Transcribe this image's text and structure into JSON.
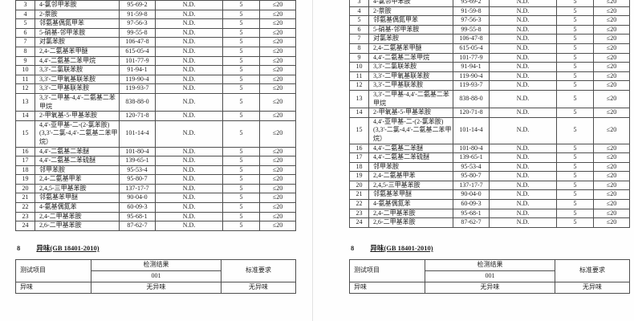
{
  "report": {
    "main_table": {
      "rows": [
        {
          "no": "3",
          "name": "4-氯邻甲苯胺",
          "cas": "95-69-2",
          "result": "N.D.",
          "limit": "5",
          "requirement": "≤20"
        },
        {
          "no": "4",
          "name": "2-萘胺",
          "cas": "91-59-8",
          "result": "N.D.",
          "limit": "5",
          "requirement": "≤20"
        },
        {
          "no": "5",
          "name": "邻氨基偶氮甲苯",
          "cas": "97-56-3",
          "result": "N.D.",
          "limit": "5",
          "requirement": "≤20"
        },
        {
          "no": "6",
          "name": "5-硝基-邻甲苯胺",
          "cas": "99-55-8",
          "result": "N.D.",
          "limit": "5",
          "requirement": "≤20"
        },
        {
          "no": "7",
          "name": "对氯苯胺",
          "cas": "106-47-8",
          "result": "N.D.",
          "limit": "5",
          "requirement": "≤20"
        },
        {
          "no": "8",
          "name": "2,4-二氨基苯甲醚",
          "cas": "615-05-4",
          "result": "N.D.",
          "limit": "5",
          "requirement": "≤20"
        },
        {
          "no": "9",
          "name": "4,4'-二氨基二苯甲烷",
          "cas": "101-77-9",
          "result": "N.D.",
          "limit": "5",
          "requirement": "≤20"
        },
        {
          "no": "10",
          "name": "3,3'-二氯联苯胺",
          "cas": "91-94-1",
          "result": "N.D.",
          "limit": "5",
          "requirement": "≤20"
        },
        {
          "no": "11",
          "name": "3,3'-二甲氧基联苯胺",
          "cas": "119-90-4",
          "result": "N.D.",
          "limit": "5",
          "requirement": "≤20"
        },
        {
          "no": "12",
          "name": "3,3'-二甲基联苯胺",
          "cas": "119-93-7",
          "result": "N.D.",
          "limit": "5",
          "requirement": "≤20"
        },
        {
          "no": "13",
          "name": "3,3'-二甲基-4,4'-二氨基二苯甲烷",
          "cas": "838-88-0",
          "result": "N.D.",
          "limit": "5",
          "requirement": "≤20"
        },
        {
          "no": "14",
          "name": "2-甲氧基-5-甲基苯胺",
          "cas": "120-71-8",
          "result": "N.D.",
          "limit": "5",
          "requirement": "≤20"
        },
        {
          "no": "15",
          "name": "4,4'-亚甲基-二-(2-氯苯胺)\n(3,3'-二氯-4,4'-二氨基二苯甲烷）",
          "cas": "101-14-4",
          "result": "N.D.",
          "limit": "5",
          "requirement": "≤20"
        },
        {
          "no": "16",
          "name": "4,4'-二氨基二苯醚",
          "cas": "101-80-4",
          "result": "N.D.",
          "limit": "5",
          "requirement": "≤20"
        },
        {
          "no": "17",
          "name": "4,4'-二氨基二苯硫醚",
          "cas": "139-65-1",
          "result": "N.D.",
          "limit": "5",
          "requirement": "≤20"
        },
        {
          "no": "18",
          "name": "邻甲苯胺",
          "cas": "95-53-4",
          "result": "N.D.",
          "limit": "5",
          "requirement": "≤20"
        },
        {
          "no": "19",
          "name": "2,4-二氨基甲苯",
          "cas": "95-80-7",
          "result": "N.D.",
          "limit": "5",
          "requirement": "≤20"
        },
        {
          "no": "20",
          "name": "2,4,5-三甲基苯胺",
          "cas": "137-17-7",
          "result": "N.D.",
          "limit": "5",
          "requirement": "≤20"
        },
        {
          "no": "21",
          "name": "邻氨基苯甲醚",
          "cas": "90-04-0",
          "result": "N.D.",
          "limit": "5",
          "requirement": "≤20"
        },
        {
          "no": "22",
          "name": "4-氨基偶氮苯",
          "cas": "60-09-3",
          "result": "N.D.",
          "limit": "5",
          "requirement": "≤20"
        },
        {
          "no": "23",
          "name": "2,4-二甲基苯胺",
          "cas": "95-68-1",
          "result": "N.D.",
          "limit": "5",
          "requirement": "≤20"
        },
        {
          "no": "24",
          "name": "2,6-二甲基苯胺",
          "cas": "87-62-7",
          "result": "N.D.",
          "limit": "5",
          "requirement": "≤20"
        }
      ]
    },
    "section": {
      "number": "8",
      "title": "异味(GB 18401-2010)"
    },
    "odor_table": {
      "test_item_header": "测试项目",
      "result_header": "检测结果",
      "sample_id": "001",
      "requirement_header": "标准要求",
      "row": {
        "item": "异味",
        "result": "无异味",
        "requirement": "无异味"
      }
    }
  },
  "colors": {
    "border": "#4e4e4e",
    "text": "#1e1e1e",
    "page_divider": "#e2e2e2",
    "page_background": "#fefefe"
  }
}
